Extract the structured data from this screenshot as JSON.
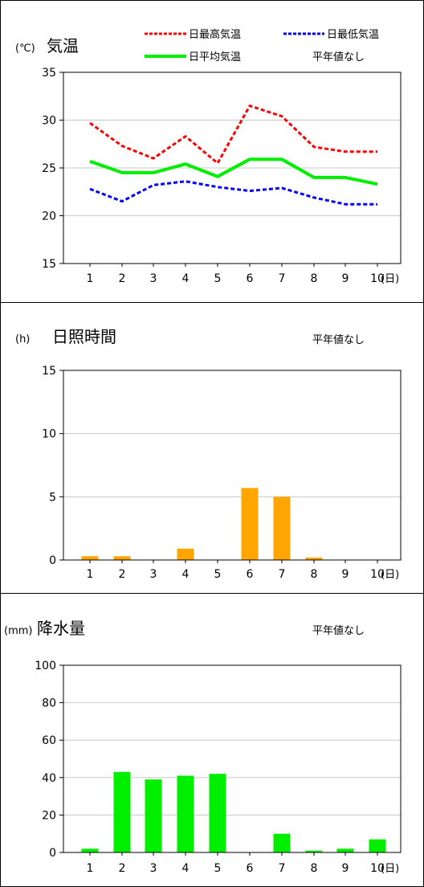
{
  "days": [
    "1",
    "2",
    "3",
    "4",
    "5",
    "6",
    "7",
    "8",
    "9",
    "10"
  ],
  "x_unit": "(日)",
  "no_normal_label": "平年値なし",
  "colors": {
    "max": "#ff0000",
    "min": "#0000ff",
    "avg": "#00ee00",
    "sun": "#ffa500",
    "rain": "#00ee00",
    "grid": "#c8c8c8"
  },
  "chart_data": [
    {
      "type": "line",
      "title": "気温",
      "unit": "(℃)",
      "legend": {
        "max": "日最高気温",
        "min": "日最低気温",
        "avg": "日平均気温"
      },
      "categories": [
        "1",
        "2",
        "3",
        "4",
        "5",
        "6",
        "7",
        "8",
        "9",
        "10"
      ],
      "ylim": [
        15,
        35
      ],
      "yticks": [
        "15",
        "20",
        "25",
        "30",
        "35"
      ],
      "series": [
        {
          "name": "日最高気温",
          "values": [
            29.7,
            27.3,
            26.0,
            28.3,
            25.5,
            31.5,
            30.4,
            27.2,
            26.7,
            26.7
          ]
        },
        {
          "name": "日最低気温",
          "values": [
            22.8,
            21.5,
            23.2,
            23.6,
            23.0,
            22.6,
            22.9,
            21.9,
            21.2,
            21.2
          ]
        },
        {
          "name": "日平均気温",
          "values": [
            25.7,
            24.5,
            24.5,
            25.4,
            24.1,
            25.9,
            25.9,
            24.0,
            24.0,
            23.3
          ]
        }
      ],
      "legend_position": "top"
    },
    {
      "type": "bar",
      "title": "日照時間",
      "unit": "(h)",
      "categories": [
        "1",
        "2",
        "3",
        "4",
        "5",
        "6",
        "7",
        "8",
        "9",
        "10"
      ],
      "ylim": [
        0,
        15
      ],
      "yticks": [
        "0",
        "5",
        "10",
        "15"
      ],
      "values": [
        0.3,
        0.3,
        0,
        0.9,
        0,
        5.7,
        5.0,
        0.2,
        0,
        0
      ]
    },
    {
      "type": "bar",
      "title": "降水量",
      "unit": "(mm)",
      "categories": [
        "1",
        "2",
        "3",
        "4",
        "5",
        "6",
        "7",
        "8",
        "9",
        "10"
      ],
      "ylim": [
        0,
        100
      ],
      "yticks": [
        "0",
        "20",
        "40",
        "60",
        "80",
        "100"
      ],
      "values": [
        2,
        43,
        39,
        41,
        42,
        0,
        10,
        1,
        2,
        7
      ]
    }
  ]
}
